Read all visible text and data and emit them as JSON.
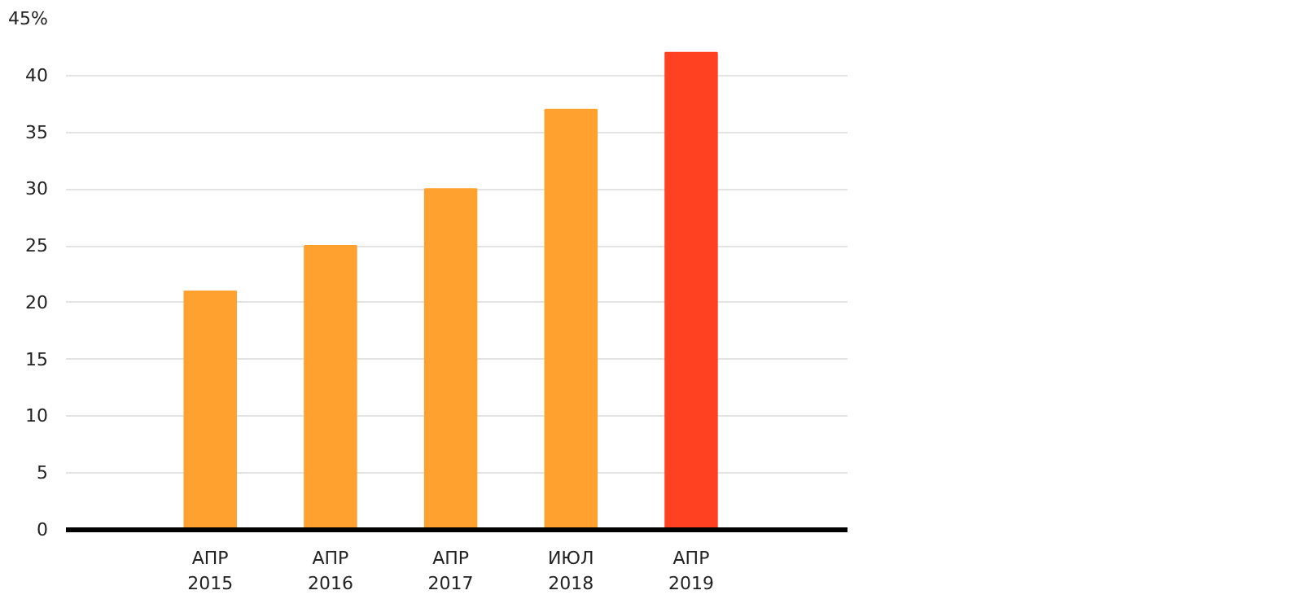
{
  "chart_data": {
    "type": "bar",
    "categories": [
      "АПР\n2015",
      "АПР\n2016",
      "АПР\n2017",
      "ИЮЛ\n2018",
      "АПР\n2019"
    ],
    "values": [
      21,
      25,
      30,
      37,
      42
    ],
    "colors": [
      "#ffa12f",
      "#ffa12f",
      "#ffa12f",
      "#ffa12f",
      "#ff4122"
    ],
    "ylim": [
      0,
      45
    ],
    "yticks": [
      0,
      5,
      10,
      15,
      20,
      25,
      30,
      35,
      40,
      {
        "value": 45,
        "label": "45%"
      }
    ],
    "grid": "y"
  }
}
